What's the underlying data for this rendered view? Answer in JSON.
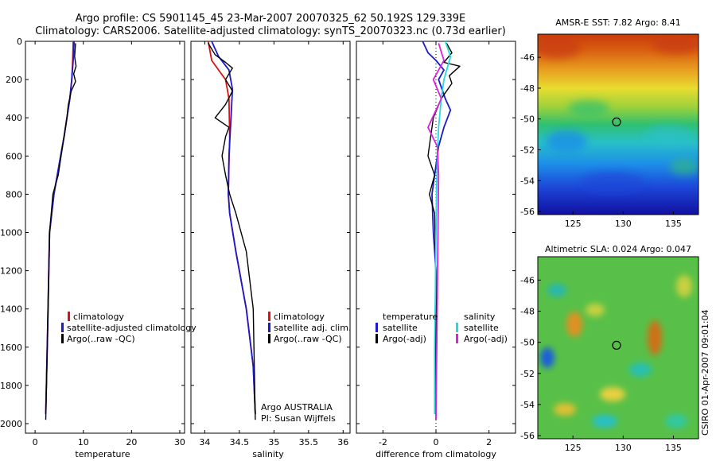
{
  "header": {
    "line1": "Argo profile: CS 5901145_45 23-Mar-2007 20070325_62 50.192S 129.339E",
    "line2": "Climatology: CARS2006. Satellite-adjusted climatology: synTS_20070323.nc (0.73d earlier)"
  },
  "colors": {
    "climatology": "#dd1111",
    "satellite": "#1a1acc",
    "argo": "#000000",
    "salinity_sat": "#22dddd",
    "salinity_argo": "#dd22dd"
  },
  "chart_data": [
    {
      "type": "line",
      "id": "temperature",
      "xlabel": "temperature",
      "ylabel": "",
      "xlim": [
        -2,
        31
      ],
      "ylim": [
        2050,
        0
      ],
      "xticks": [
        0,
        10,
        20,
        30
      ],
      "yticks": [
        0,
        200,
        400,
        600,
        800,
        1000,
        1200,
        1400,
        1600,
        1800,
        2000
      ],
      "legend": [
        "climatology",
        "satellite-adjusted climatology",
        "Argo(..raw -QC)"
      ],
      "series": [
        {
          "name": "climatology",
          "color": "#dd1111",
          "x": [
            7.9,
            7.8,
            7.6,
            7.2,
            6.6,
            6.0,
            5.3,
            4.6,
            3.9,
            3.0,
            2.6,
            2.2
          ],
          "y": [
            0,
            100,
            200,
            300,
            400,
            500,
            600,
            700,
            800,
            1000,
            1500,
            1950
          ]
        },
        {
          "name": "satellite-adjusted climatology",
          "color": "#1a1acc",
          "x": [
            8.1,
            7.9,
            7.6,
            7.2,
            6.6,
            6.0,
            5.3,
            4.6,
            3.9,
            3.0,
            2.6,
            2.2
          ],
          "y": [
            0,
            100,
            200,
            300,
            400,
            500,
            600,
            700,
            800,
            1000,
            1500,
            1950
          ]
        },
        {
          "name": "Argo(..raw -QC)",
          "color": "#000000",
          "x": [
            8.4,
            8.2,
            8.5,
            8.0,
            8.4,
            7.5,
            6.9,
            6.6,
            6.3,
            6.0,
            5.4,
            4.8,
            3.7,
            3.0,
            2.6,
            2.2
          ],
          "y": [
            10,
            80,
            130,
            170,
            210,
            260,
            330,
            400,
            450,
            500,
            600,
            700,
            800,
            1000,
            1500,
            1980
          ]
        }
      ]
    },
    {
      "type": "line",
      "id": "salinity",
      "xlabel": "salinity",
      "ylabel": "",
      "xlim": [
        33.8,
        36.1
      ],
      "ylim": [
        2050,
        0
      ],
      "xticks": [
        34,
        34.5,
        35,
        35.5,
        36
      ],
      "xticklabels": [
        "34",
        "34.5",
        "35",
        "35.5",
        "36"
      ],
      "legend": [
        "climatology",
        "satellite adj. clim.",
        "Argo(..raw -QC)"
      ],
      "annotations": [
        "Argo AUSTRALIA",
        "PI: Susan Wijffels"
      ],
      "series": [
        {
          "name": "climatology",
          "color": "#dd1111",
          "x": [
            34.05,
            34.1,
            34.2,
            34.3,
            34.35,
            34.36,
            34.35,
            34.34,
            34.36,
            34.45,
            34.6,
            34.7,
            34.73
          ],
          "y": [
            0,
            100,
            150,
            200,
            300,
            500,
            650,
            800,
            900,
            1100,
            1400,
            1700,
            1950
          ]
        },
        {
          "name": "satellite adj. clim.",
          "color": "#1a1acc",
          "x": [
            34.1,
            34.2,
            34.35,
            34.4,
            34.38,
            34.35,
            34.34,
            34.36,
            34.45,
            34.6,
            34.7,
            34.73
          ],
          "y": [
            0,
            80,
            150,
            250,
            400,
            600,
            800,
            900,
            1100,
            1400,
            1700,
            1950
          ]
        },
        {
          "name": "Argo(..raw -QC)",
          "color": "#000000",
          "x": [
            34.05,
            34.15,
            34.3,
            34.4,
            34.3,
            34.4,
            34.3,
            34.15,
            34.35,
            34.3,
            34.25,
            34.3,
            34.36,
            34.45,
            34.6,
            34.7,
            34.73
          ],
          "y": [
            10,
            70,
            110,
            140,
            200,
            260,
            330,
            400,
            450,
            500,
            600,
            700,
            800,
            900,
            1100,
            1400,
            1980
          ]
        }
      ]
    },
    {
      "type": "line",
      "id": "difference",
      "xlabel": "difference from climatology",
      "ylabel": "",
      "xlim": [
        -3,
        3
      ],
      "ylim": [
        2050,
        0
      ],
      "xticks": [
        -2,
        0,
        2
      ],
      "legend_groups": [
        {
          "heading": "temperature",
          "entries": [
            "satellite",
            "Argo(-adj)"
          ]
        },
        {
          "heading": "salinity",
          "entries": [
            "satellite",
            "Argo(-adj)"
          ]
        }
      ],
      "series": [
        {
          "name": "temperature satellite",
          "color": "#1a1acc",
          "x": [
            -0.5,
            -0.3,
            0.0,
            0.3,
            0.1,
            0.35,
            0.55,
            0.3,
            0.1,
            0.0,
            -0.15,
            -0.1,
            0.0,
            0.0
          ],
          "y": [
            0,
            60,
            100,
            150,
            200,
            300,
            360,
            450,
            550,
            650,
            800,
            1000,
            1200,
            1950
          ]
        },
        {
          "name": "temperature Argo(-adj)",
          "color": "#000000",
          "x": [
            0.4,
            0.6,
            0.3,
            0.9,
            0.5,
            0.6,
            0.2,
            -0.1,
            -0.2,
            -0.3,
            -0.05,
            -0.25,
            -0.05,
            0.0,
            0.0
          ],
          "y": [
            10,
            60,
            110,
            130,
            180,
            220,
            300,
            400,
            500,
            600,
            700,
            800,
            900,
            1200,
            1980
          ]
        },
        {
          "name": "salinity satellite",
          "color": "#22dddd",
          "x": [
            0.35,
            0.55,
            0.3,
            0.2,
            0.1,
            0.05,
            0.02,
            0.0,
            -0.02,
            -0.05,
            -0.05
          ],
          "y": [
            0,
            80,
            200,
            300,
            450,
            600,
            800,
            1000,
            1300,
            1600,
            1950
          ]
        },
        {
          "name": "salinity Argo(-adj)",
          "color": "#dd22dd",
          "x": [
            0.1,
            0.3,
            -0.1,
            0.2,
            -0.3,
            0.05,
            0.1,
            0.0
          ],
          "y": [
            10,
            100,
            200,
            300,
            450,
            550,
            700,
            1980
          ]
        }
      ]
    },
    {
      "type": "heatmap",
      "id": "sst",
      "title": "AMSR-E SST: 7.82  Argo: 8.41",
      "xlim": [
        121.5,
        137.5
      ],
      "ylim": [
        -56.2,
        -44.5
      ],
      "xticks": [
        125,
        130,
        135
      ],
      "yticks": [
        -46,
        -48,
        -50,
        -52,
        -54,
        -56
      ],
      "marker": {
        "lon": 129.339,
        "lat": -50.192
      }
    },
    {
      "type": "heatmap",
      "id": "sla",
      "title": "Altimetric SLA: 0.024  Argo: 0.047",
      "side_text": "CSIRO 01-Apr-2007 09:01:04",
      "xlim": [
        121.5,
        137.5
      ],
      "ylim": [
        -56.2,
        -44.5
      ],
      "xticks": [
        125,
        130,
        135
      ],
      "yticks": [
        -46,
        -48,
        -50,
        -52,
        -54,
        -56
      ],
      "marker": {
        "lon": 129.339,
        "lat": -50.192
      }
    }
  ]
}
